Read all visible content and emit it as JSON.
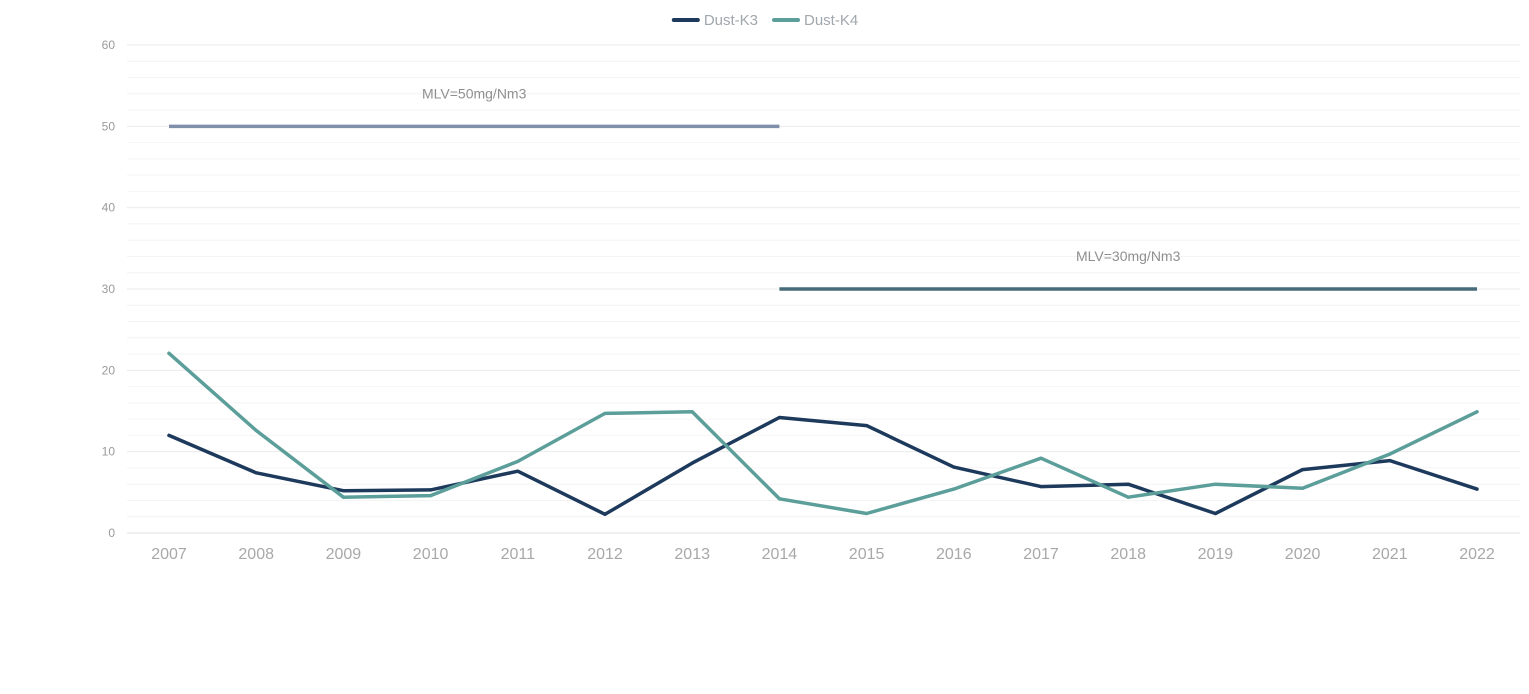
{
  "chart_data": {
    "type": "line",
    "title": "",
    "xlabel": "",
    "ylabel": "",
    "categories": [
      "2007",
      "2008",
      "2009",
      "2010",
      "2011",
      "2012",
      "2013",
      "2014",
      "2015",
      "2016",
      "2017",
      "2018",
      "2019",
      "2020",
      "2021",
      "2022"
    ],
    "ylim": [
      0,
      60
    ],
    "yticks": [
      0,
      10,
      20,
      30,
      40,
      50,
      60
    ],
    "grid": true,
    "legend_position": "top-center",
    "series": [
      {
        "name": "Dust-K3",
        "color": "#1d3a5c",
        "values": [
          12.0,
          7.4,
          5.2,
          5.3,
          7.6,
          2.3,
          8.6,
          14.2,
          13.2,
          8.1,
          5.7,
          6.0,
          2.4,
          7.8,
          8.9,
          5.4
        ]
      },
      {
        "name": "Dust-K4",
        "color": "#5b9e9a",
        "values": [
          22.1,
          12.6,
          4.4,
          4.6,
          8.8,
          14.7,
          14.9,
          4.2,
          2.4,
          5.4,
          9.2,
          4.4,
          6.0,
          5.5,
          9.7,
          14.9
        ]
      }
    ],
    "annotations": [
      {
        "text": "MLV=50mg/Nm3",
        "value": 50,
        "from": "2007",
        "to": "2014",
        "color": "#8090aa"
      },
      {
        "text": "MLV=30mg/Nm3",
        "value": 30,
        "from": "2014",
        "to": "2022",
        "color": "#476b78"
      }
    ]
  }
}
